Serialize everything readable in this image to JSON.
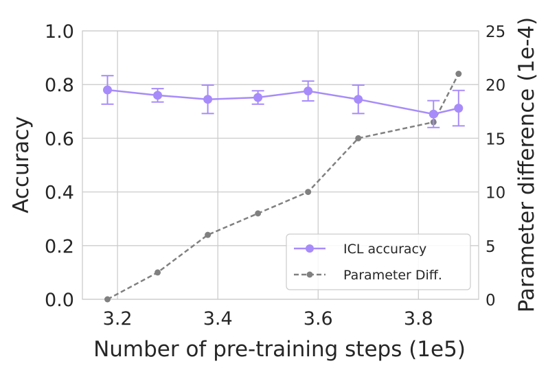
{
  "chart_data": {
    "type": "line",
    "xlabel": "Number of pre-training steps (1e5)",
    "ylabel_left": "Accuracy",
    "ylabel_right": "Parameter difference (1e-4)",
    "xlim": [
      3.13,
      3.92
    ],
    "ylim_left": [
      0.0,
      1.0
    ],
    "ylim_right": [
      0,
      25
    ],
    "x_ticks": [
      {
        "value": 3.2,
        "label": "3.2"
      },
      {
        "value": 3.4,
        "label": "3.4"
      },
      {
        "value": 3.6,
        "label": "3.6"
      },
      {
        "value": 3.8,
        "label": "3.8"
      }
    ],
    "y_ticks_left": [
      {
        "value": 0.0,
        "label": "0.0"
      },
      {
        "value": 0.2,
        "label": "0.2"
      },
      {
        "value": 0.4,
        "label": "0.4"
      },
      {
        "value": 0.6,
        "label": "0.6"
      },
      {
        "value": 0.8,
        "label": "0.8"
      },
      {
        "value": 1.0,
        "label": "1.0"
      }
    ],
    "y_ticks_right": [
      {
        "value": 0,
        "label": "0"
      },
      {
        "value": 5,
        "label": "5"
      },
      {
        "value": 10,
        "label": "10"
      },
      {
        "value": 15,
        "label": "15"
      },
      {
        "value": 20,
        "label": "20"
      },
      {
        "value": 25,
        "label": "25"
      }
    ],
    "grid": true,
    "legend_position": "lower-right",
    "series": [
      {
        "name": "ICL accuracy",
        "axis": "left",
        "color": "#a78bfa",
        "line_style": "solid",
        "x": [
          3.18,
          3.28,
          3.38,
          3.48,
          3.58,
          3.68,
          3.83,
          3.88
        ],
        "y": [
          0.78,
          0.76,
          0.745,
          0.752,
          0.776,
          0.745,
          0.69,
          0.712
        ],
        "err": [
          0.053,
          0.025,
          0.053,
          0.025,
          0.037,
          0.053,
          0.05,
          0.066
        ]
      },
      {
        "name": "Parameter Diff.",
        "axis": "right",
        "color": "#808080",
        "line_style": "dashed",
        "x": [
          3.18,
          3.28,
          3.38,
          3.48,
          3.58,
          3.68,
          3.83,
          3.88
        ],
        "y": [
          0,
          2.5,
          6,
          8,
          10,
          15,
          16.5,
          21
        ]
      }
    ]
  }
}
